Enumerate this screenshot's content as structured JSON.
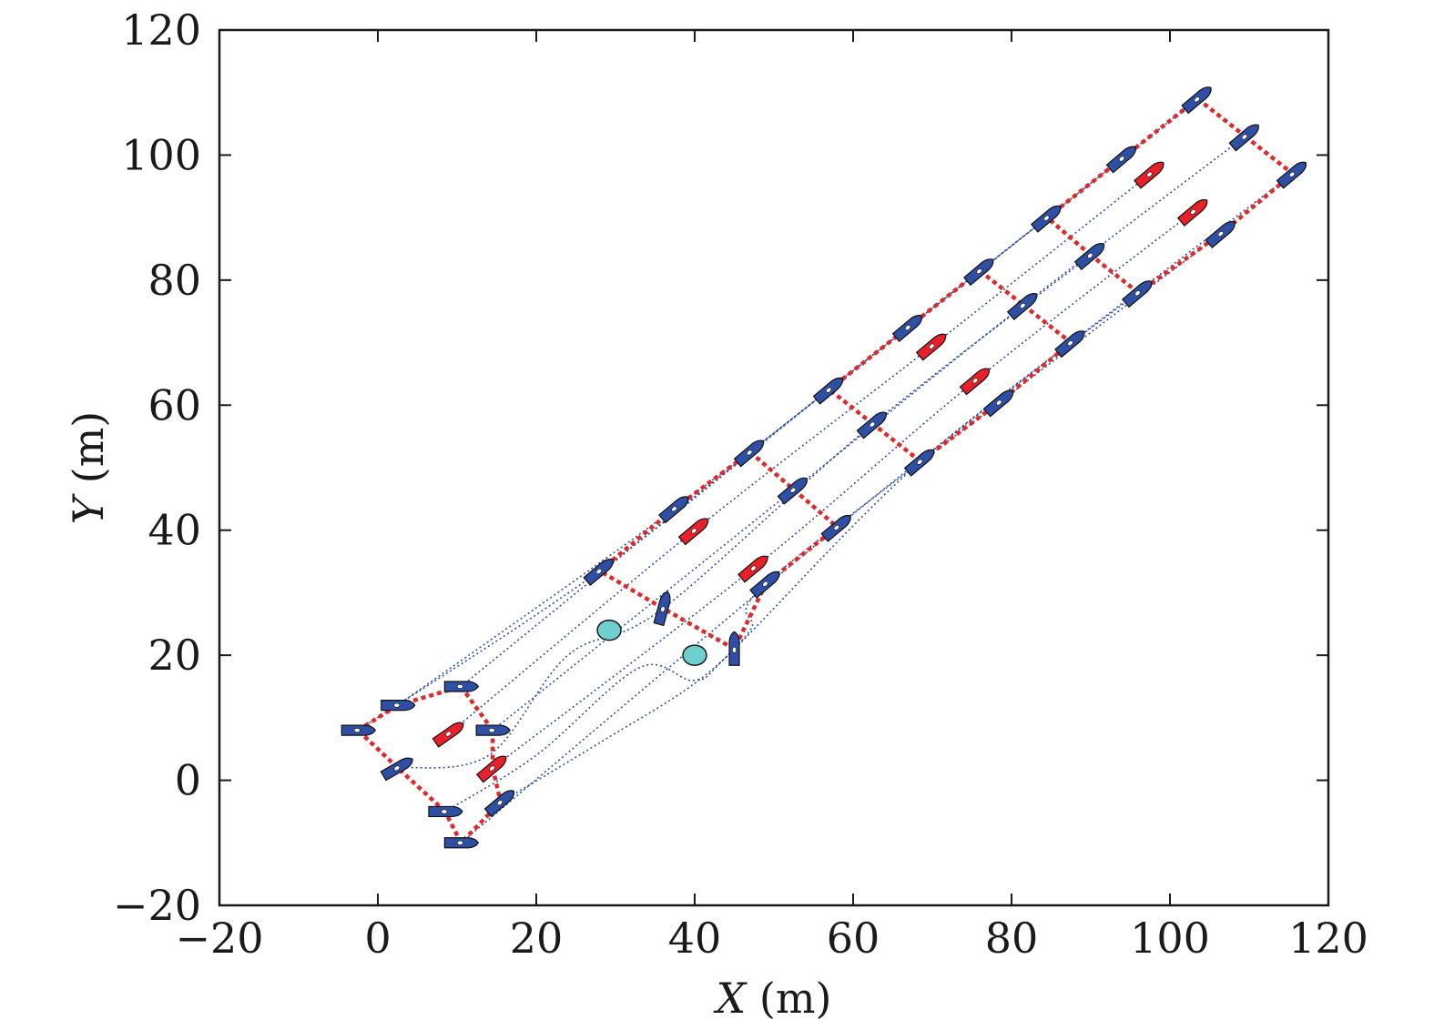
{
  "chart_data": {
    "type": "scatter",
    "xlabel": {
      "var": "X",
      "unit": " (m)"
    },
    "ylabel": {
      "var": "Y",
      "unit": " (m)"
    },
    "xlim": [
      -20,
      120
    ],
    "ylim": [
      -20,
      120
    ],
    "xticks": [
      -20,
      0,
      20,
      40,
      60,
      80,
      100,
      120
    ],
    "yticks": [
      -20,
      0,
      20,
      40,
      60,
      80,
      100,
      120
    ],
    "xtick_labels": [
      "−20",
      "0",
      "20",
      "40",
      "60",
      "80",
      "100",
      "120"
    ],
    "ytick_labels": [
      "−20",
      "0",
      "20",
      "40",
      "60",
      "80",
      "100",
      "120"
    ],
    "grid": false,
    "colors": {
      "follower_vessel": "#2e4fa3",
      "leader_vessel": "#e8202a",
      "formation_line": "#e02a2a",
      "trajectory": "#2e4fa3",
      "obstacle": "#6fcfcf"
    },
    "obstacles": [
      {
        "x": 29.2,
        "y": 24.0
      },
      {
        "x": 40.0,
        "y": 20.0
      }
    ],
    "snapshots": [
      {
        "vessels": [
          {
            "x": -2.5,
            "y": 8.0,
            "heading": 0,
            "role": "follower"
          },
          {
            "x": 2.5,
            "y": 12.0,
            "heading": 0,
            "role": "follower"
          },
          {
            "x": 10.5,
            "y": 15.0,
            "heading": 0,
            "role": "follower"
          },
          {
            "x": 2.5,
            "y": 2.0,
            "heading": 30,
            "role": "follower"
          },
          {
            "x": 14.5,
            "y": 8.0,
            "heading": 0,
            "role": "follower"
          },
          {
            "x": 9.0,
            "y": 7.5,
            "heading": 35,
            "role": "leader"
          },
          {
            "x": 14.5,
            "y": 2.0,
            "heading": 40,
            "role": "leader"
          },
          {
            "x": 8.5,
            "y": -5.0,
            "heading": 0,
            "role": "follower"
          },
          {
            "x": 15.5,
            "y": -3.5,
            "heading": 40,
            "role": "follower"
          },
          {
            "x": 10.5,
            "y": -10.0,
            "heading": 0,
            "role": "follower"
          }
        ],
        "formation": [
          [
            0,
            1
          ],
          [
            1,
            2
          ],
          [
            2,
            4
          ],
          [
            4,
            6
          ],
          [
            6,
            8
          ],
          [
            8,
            9
          ],
          [
            9,
            7
          ],
          [
            7,
            3
          ],
          [
            3,
            0
          ]
        ]
      },
      {
        "vessels": [
          {
            "x": 28.0,
            "y": 33.5,
            "heading": 40,
            "role": "follower"
          },
          {
            "x": 37.5,
            "y": 43.5,
            "heading": 40,
            "role": "follower"
          },
          {
            "x": 47.0,
            "y": 52.5,
            "heading": 40,
            "role": "follower"
          },
          {
            "x": 36.0,
            "y": 27.5,
            "heading": 75,
            "role": "follower"
          },
          {
            "x": 52.5,
            "y": 46.5,
            "heading": 40,
            "role": "follower"
          },
          {
            "x": 40.0,
            "y": 40.0,
            "heading": 40,
            "role": "leader"
          },
          {
            "x": 47.5,
            "y": 34.0,
            "heading": 40,
            "role": "leader"
          },
          {
            "x": 45.0,
            "y": 21.0,
            "heading": 90,
            "role": "follower"
          },
          {
            "x": 49.0,
            "y": 31.5,
            "heading": 40,
            "role": "follower"
          },
          {
            "x": 58.0,
            "y": 40.5,
            "heading": 40,
            "role": "follower"
          }
        ],
        "formation": [
          [
            0,
            1
          ],
          [
            1,
            2
          ],
          [
            2,
            4
          ],
          [
            4,
            9
          ],
          [
            9,
            8
          ],
          [
            8,
            7
          ],
          [
            7,
            3
          ],
          [
            3,
            0
          ]
        ]
      },
      {
        "vessels": [
          {
            "x": 57.0,
            "y": 62.5,
            "heading": 40,
            "role": "follower"
          },
          {
            "x": 67.0,
            "y": 72.5,
            "heading": 40,
            "role": "follower"
          },
          {
            "x": 76.0,
            "y": 81.5,
            "heading": 40,
            "role": "follower"
          },
          {
            "x": 62.5,
            "y": 57.0,
            "heading": 40,
            "role": "follower"
          },
          {
            "x": 81.5,
            "y": 76.0,
            "heading": 40,
            "role": "follower"
          },
          {
            "x": 70.0,
            "y": 69.5,
            "heading": 40,
            "role": "leader"
          },
          {
            "x": 75.5,
            "y": 64.0,
            "heading": 40,
            "role": "leader"
          },
          {
            "x": 68.5,
            "y": 51.0,
            "heading": 40,
            "role": "follower"
          },
          {
            "x": 78.5,
            "y": 60.5,
            "heading": 40,
            "role": "follower"
          },
          {
            "x": 87.5,
            "y": 70.0,
            "heading": 40,
            "role": "follower"
          }
        ],
        "formation": [
          [
            0,
            1
          ],
          [
            1,
            2
          ],
          [
            2,
            4
          ],
          [
            4,
            9
          ],
          [
            9,
            8
          ],
          [
            8,
            7
          ],
          [
            7,
            3
          ],
          [
            3,
            0
          ]
        ]
      },
      {
        "vessels": [
          {
            "x": 84.5,
            "y": 90.0,
            "heading": 40,
            "role": "follower"
          },
          {
            "x": 94.0,
            "y": 99.5,
            "heading": 40,
            "role": "follower"
          },
          {
            "x": 103.5,
            "y": 109.0,
            "heading": 40,
            "role": "follower"
          },
          {
            "x": 90.0,
            "y": 84.0,
            "heading": 40,
            "role": "follower"
          },
          {
            "x": 109.5,
            "y": 103.0,
            "heading": 40,
            "role": "follower"
          },
          {
            "x": 97.5,
            "y": 97.0,
            "heading": 40,
            "role": "leader"
          },
          {
            "x": 103.0,
            "y": 91.0,
            "heading": 40,
            "role": "leader"
          },
          {
            "x": 96.0,
            "y": 78.0,
            "heading": 40,
            "role": "follower"
          },
          {
            "x": 106.5,
            "y": 87.5,
            "heading": 40,
            "role": "follower"
          },
          {
            "x": 115.5,
            "y": 97.0,
            "heading": 40,
            "role": "follower"
          }
        ],
        "formation": [
          [
            0,
            1
          ],
          [
            1,
            2
          ],
          [
            2,
            4
          ],
          [
            4,
            9
          ],
          [
            9,
            8
          ],
          [
            8,
            7
          ],
          [
            7,
            3
          ],
          [
            3,
            0
          ]
        ]
      }
    ],
    "trajectory_hints": {
      "0": [],
      "3": [
        [
          14.0,
          4.0
        ],
        [
          24.0,
          20.0
        ]
      ],
      "7": [
        [
          20.0,
          4.0
        ],
        [
          33.0,
          18.0
        ],
        [
          40.0,
          16.0
        ]
      ],
      "8": [
        [
          28.0,
          6.0
        ],
        [
          40.0,
          15.5
        ],
        [
          47.0,
          24.0
        ]
      ]
    }
  }
}
